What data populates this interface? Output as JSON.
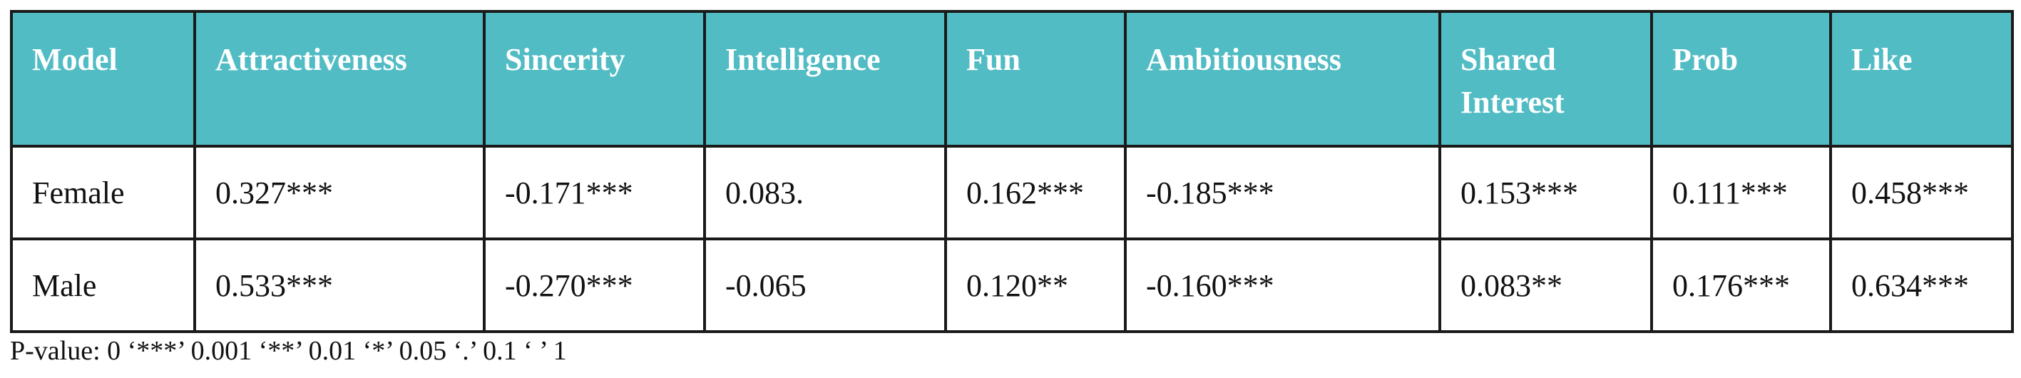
{
  "table": {
    "headers": [
      "Model",
      "Attractiveness",
      "Sincerity",
      "Intelligence",
      "Fun",
      "Ambitiousness",
      "Shared Interest",
      "Prob",
      "Like"
    ],
    "rows": [
      [
        "Female",
        "0.327***",
        "-0.171***",
        "0.083.",
        "0.162***",
        "-0.185***",
        "0.153***",
        "0.111***",
        "0.458***"
      ],
      [
        "Male",
        "0.533***",
        "-0.270***",
        "-0.065",
        "0.120**",
        "-0.160***",
        "0.083**",
        "0.176***",
        "0.634***"
      ]
    ]
  },
  "footnote": "P-value: 0 ‘***’ 0.001 ‘**’ 0.01 ‘*’ 0.05 ‘.’ 0.1 ‘ ’ 1",
  "colors": {
    "header_background": "#52bcc4",
    "header_text": "#ffffff",
    "border": "#1a1a1a"
  }
}
